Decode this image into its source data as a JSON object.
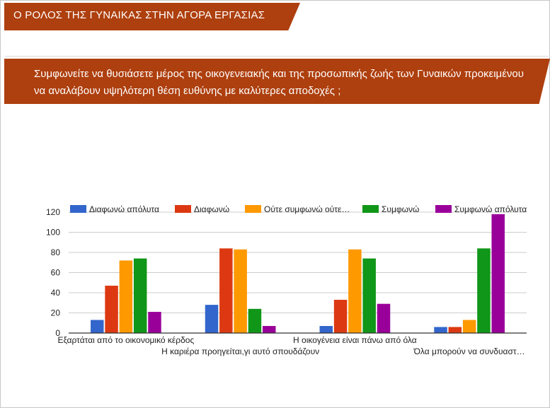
{
  "header": {
    "title": "Ο ΡΟΛΟΣ ΤΗΣ ΓΥΝΑΙΚΑΣ ΣΤΗΝ ΑΓΟΡΑ ΕΡΓΑΣΙΑΣ"
  },
  "question": {
    "text": "Συμφωνείτε να θυσιάσετε μέρος της οικογενειακής και της προσωπικής ζωής των Γυναικών προκειμένου να αναλάβουν υψηλότερη θέση ευθύνης με καλύτερες αποδοχές ;"
  },
  "colors": {
    "banner": "#ae3f0e"
  },
  "chart_data": {
    "type": "bar",
    "title": "",
    "xlabel": "",
    "ylabel": "",
    "ylim": [
      0,
      120
    ],
    "yticks": [
      0,
      20,
      40,
      60,
      80,
      100,
      120
    ],
    "grid": true,
    "legend_position": "top",
    "categories": [
      "Εξαρτάται από το οικονομικό κέρδος",
      "Η καριέρα προηγείται,γι αυτό σπουδάζουν",
      "Η οικογένεια είναι πάνω από όλα",
      "Όλα μπορούν να συνδυαστ…"
    ],
    "series": [
      {
        "name": "Διαφωνώ απόλυτα",
        "color": "#3366cc",
        "values": [
          13,
          28,
          7,
          6
        ]
      },
      {
        "name": "Διαφωνώ",
        "color": "#dc3912",
        "values": [
          47,
          84,
          33,
          6
        ]
      },
      {
        "name": "Ούτε συμφωνώ ούτε…",
        "color": "#ff9900",
        "values": [
          72,
          83,
          83,
          13
        ]
      },
      {
        "name": "Συμφωνώ",
        "color": "#109618",
        "values": [
          74,
          24,
          74,
          84
        ]
      },
      {
        "name": "Συμφωνώ απόλυτα",
        "color": "#990099",
        "values": [
          21,
          7,
          29,
          118
        ]
      }
    ]
  }
}
